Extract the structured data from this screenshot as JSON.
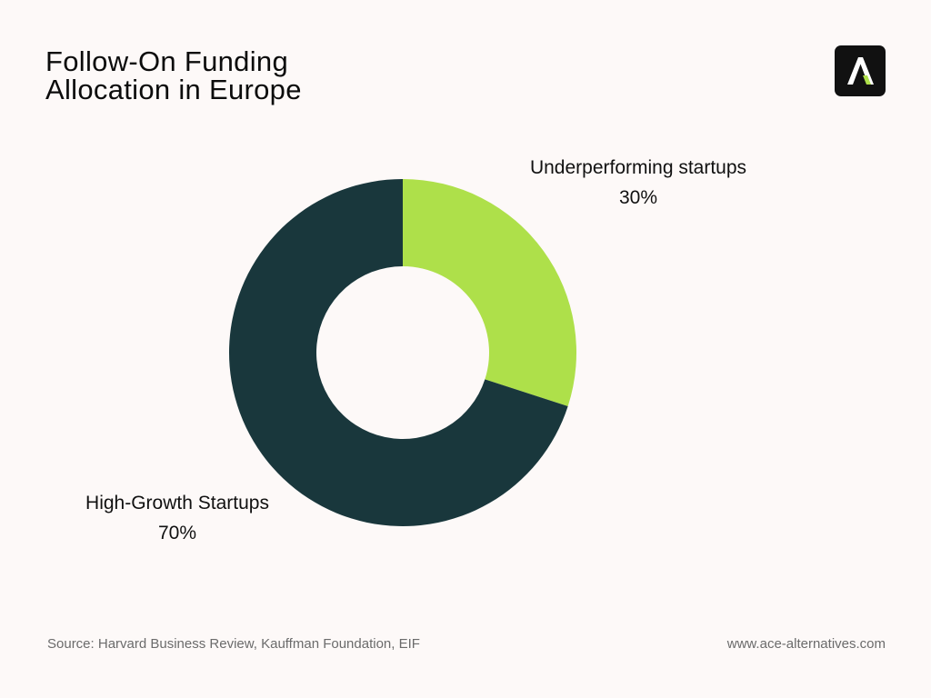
{
  "title": {
    "line1": "Follow-On Funding",
    "line2": "Allocation in Europe"
  },
  "logo": {
    "icon": "ace-alternatives-logo",
    "bg_color": "#111111",
    "letter_color": "#ffffff",
    "accent_color": "#aee04a"
  },
  "chart_data": {
    "type": "pie",
    "donut": true,
    "title": "Follow-On Funding Allocation in Europe",
    "start_angle": "top, clockwise",
    "slices": [
      {
        "label": "Underperforming startups",
        "value": 30,
        "value_label": "30%",
        "color": "#aee04a",
        "label_position": "top-right"
      },
      {
        "label": "High-Growth Startups",
        "value": 70,
        "value_label": "70%",
        "color": "#19373c",
        "label_position": "bottom-left"
      }
    ]
  },
  "footer": {
    "source": "Source: Harvard Business Review, Kauffman Foundation, EIF",
    "website": "www.ace-alternatives.com"
  }
}
